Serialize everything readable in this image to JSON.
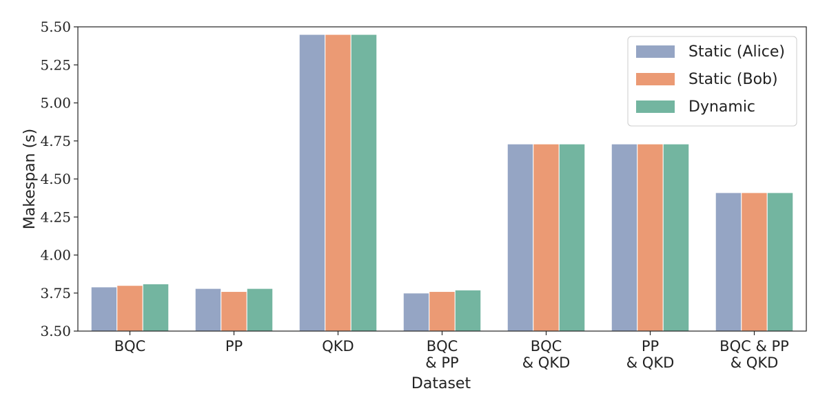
{
  "chart_data": {
    "type": "bar",
    "title": "",
    "xlabel": "Dataset",
    "ylabel": "Makespan (s)",
    "ylim": [
      3.5,
      5.5
    ],
    "yticks": [
      "3.50",
      "3.75",
      "4.00",
      "4.25",
      "4.50",
      "4.75",
      "5.00",
      "5.25",
      "5.50"
    ],
    "categories": [
      [
        "BQC"
      ],
      [
        "PP"
      ],
      [
        "QKD"
      ],
      [
        "BQC",
        "& PP"
      ],
      [
        "BQC",
        "& QKD"
      ],
      [
        "PP",
        "& QKD"
      ],
      [
        "BQC & PP",
        "& QKD"
      ]
    ],
    "series": [
      {
        "name": "Static (Alice)",
        "color": "#95a5c4",
        "values": [
          3.79,
          3.78,
          5.45,
          3.75,
          4.73,
          4.73,
          4.41
        ]
      },
      {
        "name": "Static (Bob)",
        "color": "#eb9a74",
        "values": [
          3.8,
          3.76,
          5.45,
          3.76,
          4.73,
          4.73,
          4.41
        ]
      },
      {
        "name": "Dynamic",
        "color": "#73b5a0",
        "values": [
          3.81,
          3.78,
          5.45,
          3.77,
          4.73,
          4.73,
          4.41
        ]
      }
    ],
    "legend_position": "top-right",
    "grid": false
  }
}
